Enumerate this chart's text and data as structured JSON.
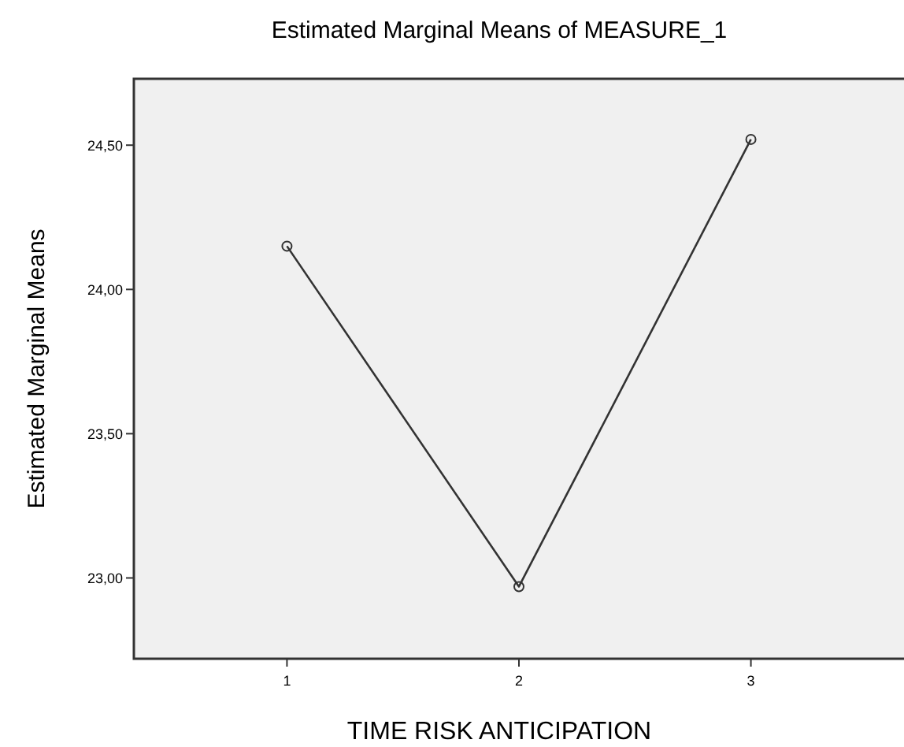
{
  "chart_data": {
    "type": "line",
    "title": "Estimated Marginal Means of MEASURE_1",
    "xlabel": "TIME RISK ANTICIPATION",
    "ylabel": "Estimated Marginal Means",
    "categories": [
      "1",
      "2",
      "3"
    ],
    "series": [
      {
        "color": "#333333",
        "values": [
          24.15,
          22.97,
          24.52
        ]
      }
    ],
    "ylim": [
      22.72,
      24.73
    ],
    "yticks": [
      {
        "value": 23,
        "label": "23,00"
      },
      {
        "value": 23.5,
        "label": "23,50"
      },
      {
        "value": 24,
        "label": "24,00"
      },
      {
        "value": 24.5,
        "label": "24,50"
      }
    ],
    "marker": "circle",
    "line_style": "solid"
  }
}
